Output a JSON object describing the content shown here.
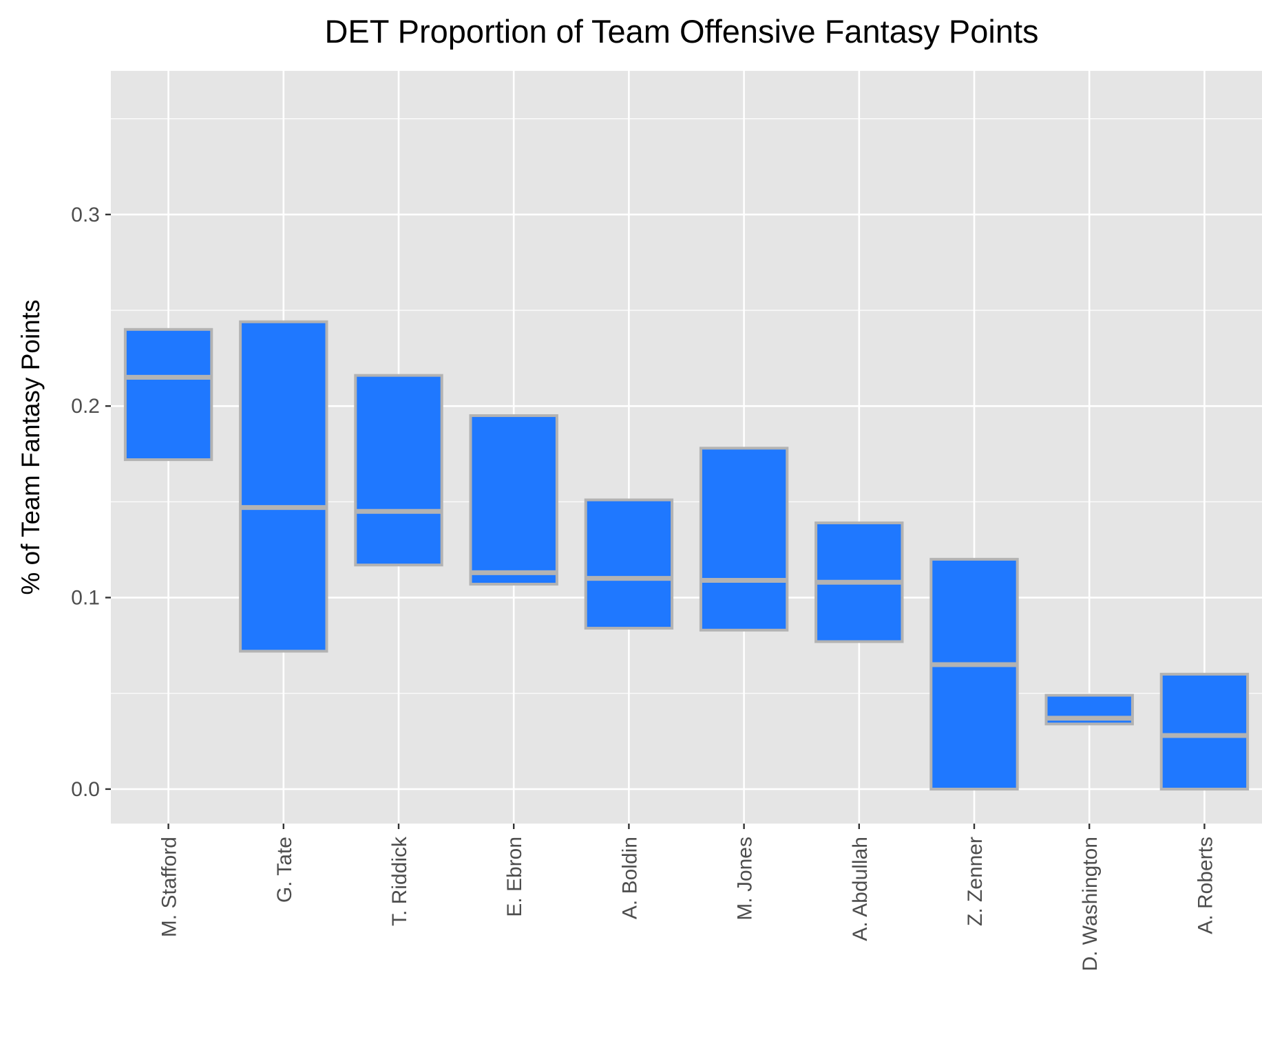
{
  "chart_data": {
    "type": "box",
    "title": "DET Proportion of Team Offensive Fantasy Points",
    "xlabel": "",
    "ylabel": "% of Team Fantasy Points",
    "ylim": [
      -0.018,
      0.375
    ],
    "yticks": [
      0.0,
      0.1,
      0.2,
      0.3
    ],
    "ytick_labels": [
      "0.0",
      "0.1",
      "0.2",
      "0.3"
    ],
    "grid": true,
    "legend": "none",
    "categories": [
      "M. Stafford",
      "G. Tate",
      "T. Riddick",
      "E. Ebron",
      "A. Boldin",
      "M. Jones",
      "A. Abdullah",
      "Z. Zenner",
      "D. Washington",
      "A. Roberts"
    ],
    "boxes": [
      {
        "category": "M. Stafford",
        "lower": 0.172,
        "median": 0.215,
        "upper": 0.24
      },
      {
        "category": "G. Tate",
        "lower": 0.072,
        "median": 0.147,
        "upper": 0.244
      },
      {
        "category": "T. Riddick",
        "lower": 0.117,
        "median": 0.145,
        "upper": 0.216
      },
      {
        "category": "E. Ebron",
        "lower": 0.107,
        "median": 0.113,
        "upper": 0.195
      },
      {
        "category": "A. Boldin",
        "lower": 0.084,
        "median": 0.11,
        "upper": 0.151
      },
      {
        "category": "M. Jones",
        "lower": 0.083,
        "median": 0.109,
        "upper": 0.178
      },
      {
        "category": "A. Abdullah",
        "lower": 0.077,
        "median": 0.108,
        "upper": 0.139
      },
      {
        "category": "Z. Zenner",
        "lower": 0.0,
        "median": 0.065,
        "upper": 0.12
      },
      {
        "category": "D. Washington",
        "lower": 0.034,
        "median": 0.037,
        "upper": 0.049
      },
      {
        "category": "A. Roberts",
        "lower": 0.0,
        "median": 0.028,
        "upper": 0.06
      }
    ],
    "colors": {
      "box_fill": "#1f78ff",
      "box_outline": "#b3b3b3",
      "panel": "#e5e5e5",
      "grid": "#ffffff",
      "tick": "#333333"
    }
  }
}
